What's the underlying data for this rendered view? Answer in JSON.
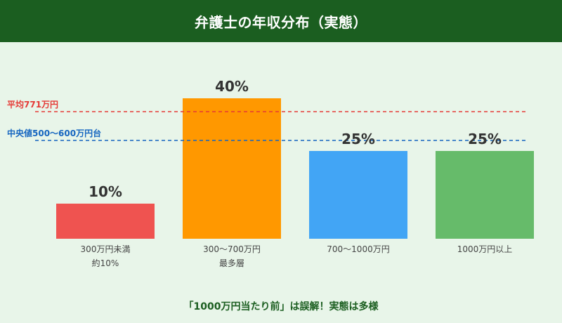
{
  "header": {
    "title": "弁護士の年収分布（実態）"
  },
  "chart_data": {
    "type": "bar",
    "title": "弁護士の年収分布（実態）",
    "categories": [
      {
        "label": "300万円未満",
        "sub": "約10%"
      },
      {
        "label": "300〜700万円",
        "sub": "最多層"
      },
      {
        "label": "700〜1000万円",
        "sub": ""
      },
      {
        "label": "1000万円以上",
        "sub": ""
      }
    ],
    "values": [
      10,
      40,
      25,
      25
    ],
    "value_labels": [
      "10%",
      "40%",
      "25%",
      "25%"
    ],
    "colors": [
      "#ef5350",
      "#ff9800",
      "#42a5f5",
      "#66bb6a"
    ],
    "ylim": [
      0,
      40
    ],
    "grid": false,
    "reference_lines": [
      {
        "label": "平均771万円",
        "color": "#e53935",
        "level": 36.2
      },
      {
        "label": "中央値500〜600万円台",
        "color": "#1565c0",
        "level": 28
      }
    ]
  },
  "footer": {
    "note": "「1000万円当たり前」は誤解！実態は多様"
  }
}
